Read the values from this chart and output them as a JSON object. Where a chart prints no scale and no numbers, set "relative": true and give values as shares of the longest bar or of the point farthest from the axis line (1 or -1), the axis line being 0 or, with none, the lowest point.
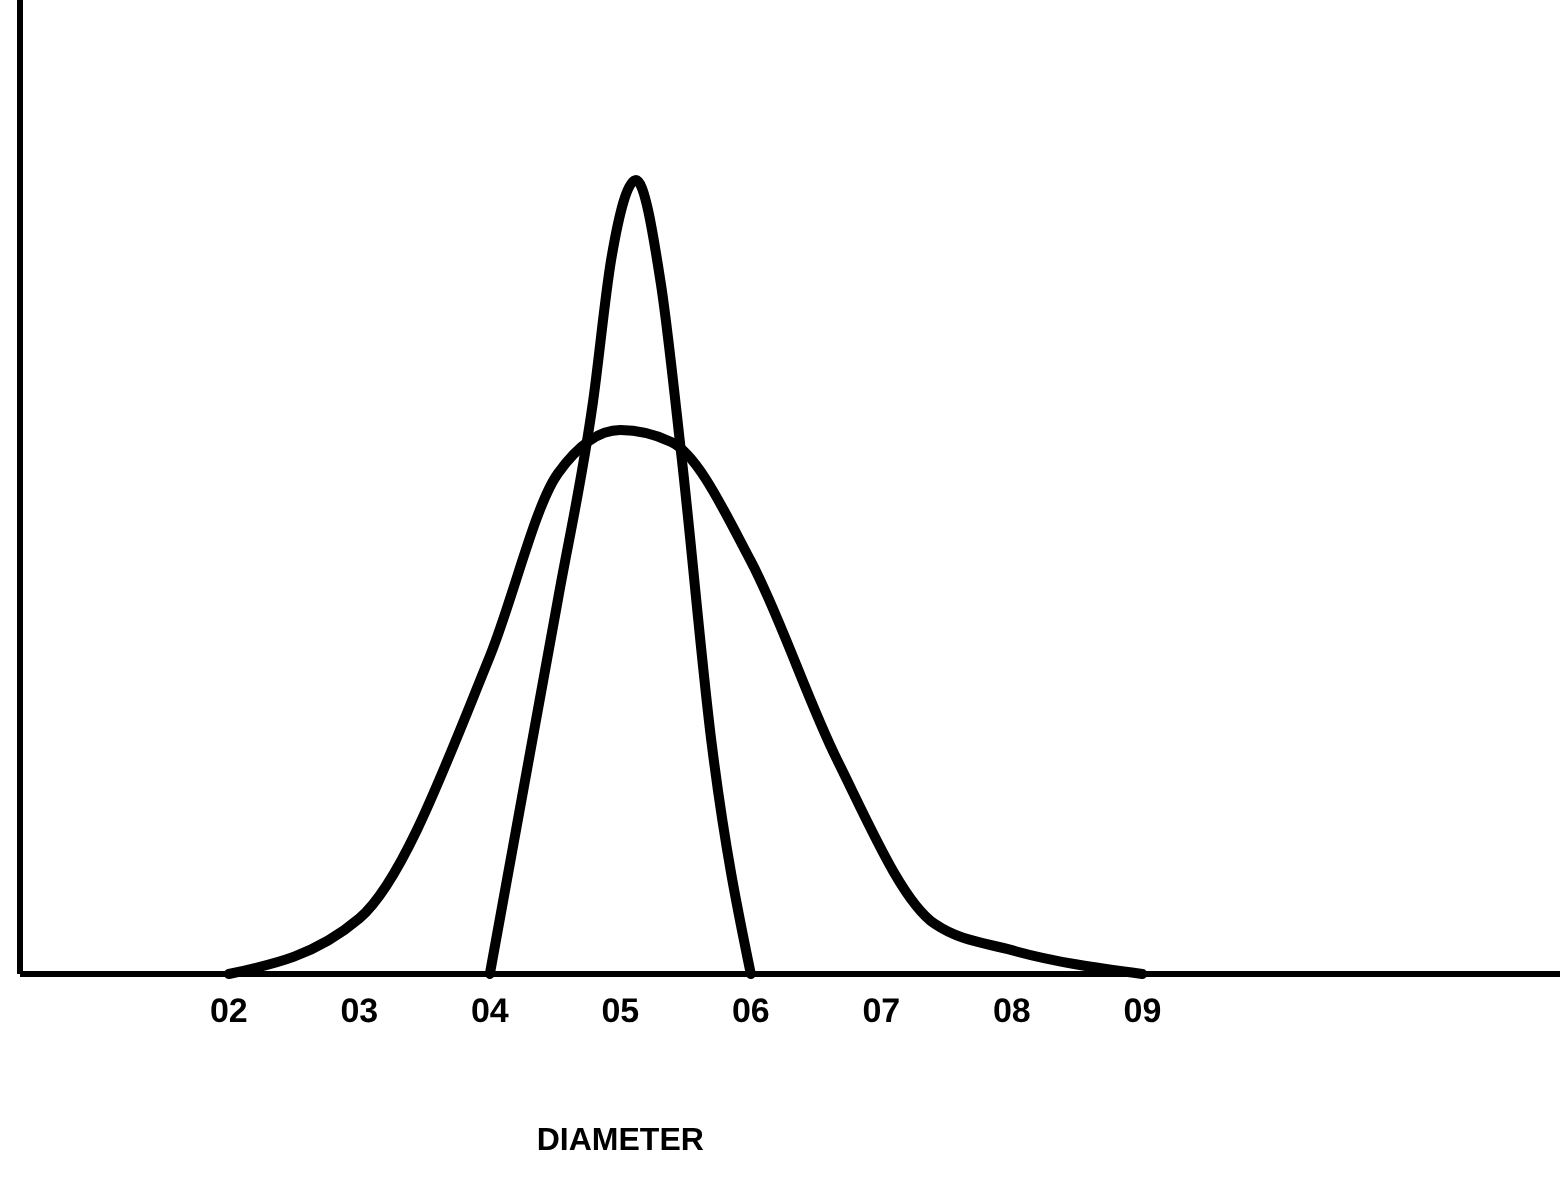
{
  "chart_data": {
    "type": "line",
    "relative": true,
    "xlabel": "DIAMETER",
    "xlim": [
      0.4,
      12.2
    ],
    "xticks": [
      {
        "value": 2,
        "label": "02"
      },
      {
        "value": 3,
        "label": "03"
      },
      {
        "value": 4,
        "label": "04"
      },
      {
        "value": 5,
        "label": "05"
      },
      {
        "value": 6,
        "label": "06"
      },
      {
        "value": 7,
        "label": "07"
      },
      {
        "value": 8,
        "label": "08"
      },
      {
        "value": 9,
        "label": "09"
      }
    ],
    "series": [
      {
        "color": "#000000",
        "x": [
          4.0,
          4.52,
          4.79,
          4.93,
          5.12,
          5.31,
          5.47,
          5.7,
          6.0
        ],
        "values": [
          0,
          0.47,
          0.72,
          0.9,
          1,
          0.87,
          0.65,
          0.29,
          0
        ]
      },
      {
        "color": "#000000",
        "x": [
          2.0,
          3.0,
          4.0,
          4.52,
          5.0,
          5.39,
          6.0,
          6.66,
          7.41,
          8.0,
          9.0
        ],
        "values": [
          0,
          0.07,
          0.4,
          0.63,
          0.685,
          0.67,
          0.52,
          0.27,
          0.063,
          0.03,
          0
        ]
      }
    ],
    "grid": false,
    "marker": "none",
    "line_style": "solid"
  }
}
